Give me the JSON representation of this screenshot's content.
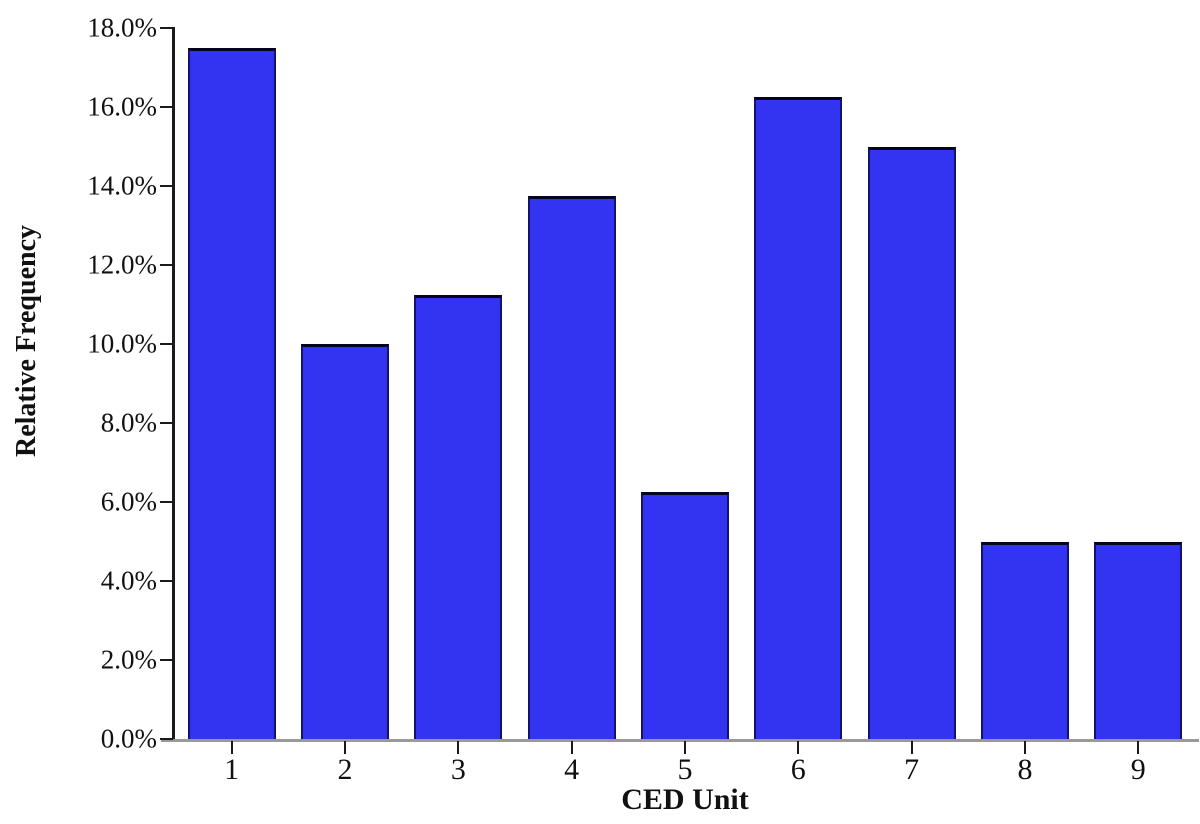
{
  "chart_data": {
    "type": "bar",
    "title": "",
    "xlabel": "CED Unit",
    "ylabel": "Relative Frequency",
    "categories": [
      "1",
      "2",
      "3",
      "4",
      "5",
      "6",
      "7",
      "8",
      "9"
    ],
    "values": [
      17.5,
      10.0,
      11.25,
      13.75,
      6.25,
      16.25,
      15.0,
      5.0,
      5.0
    ],
    "value_unit": "%",
    "ylim": [
      0,
      18
    ],
    "ytick_step": 2,
    "ytick_labels": [
      "0.0%",
      "2.0%",
      "4.0%",
      "6.0%",
      "8.0%",
      "10.0%",
      "12.0%",
      "14.0%",
      "16.0%",
      "18.0%"
    ],
    "grid": false,
    "legend": null,
    "colors": {
      "bar_fill": "#3333f2",
      "bar_border": "#13136e",
      "bar_border_top": "#04041c",
      "axis_x_line": "#999999",
      "axis_y_line": "#1a1a1a",
      "tick": "#1a1a1a",
      "text": "#111111",
      "background": "#ffffff"
    }
  }
}
